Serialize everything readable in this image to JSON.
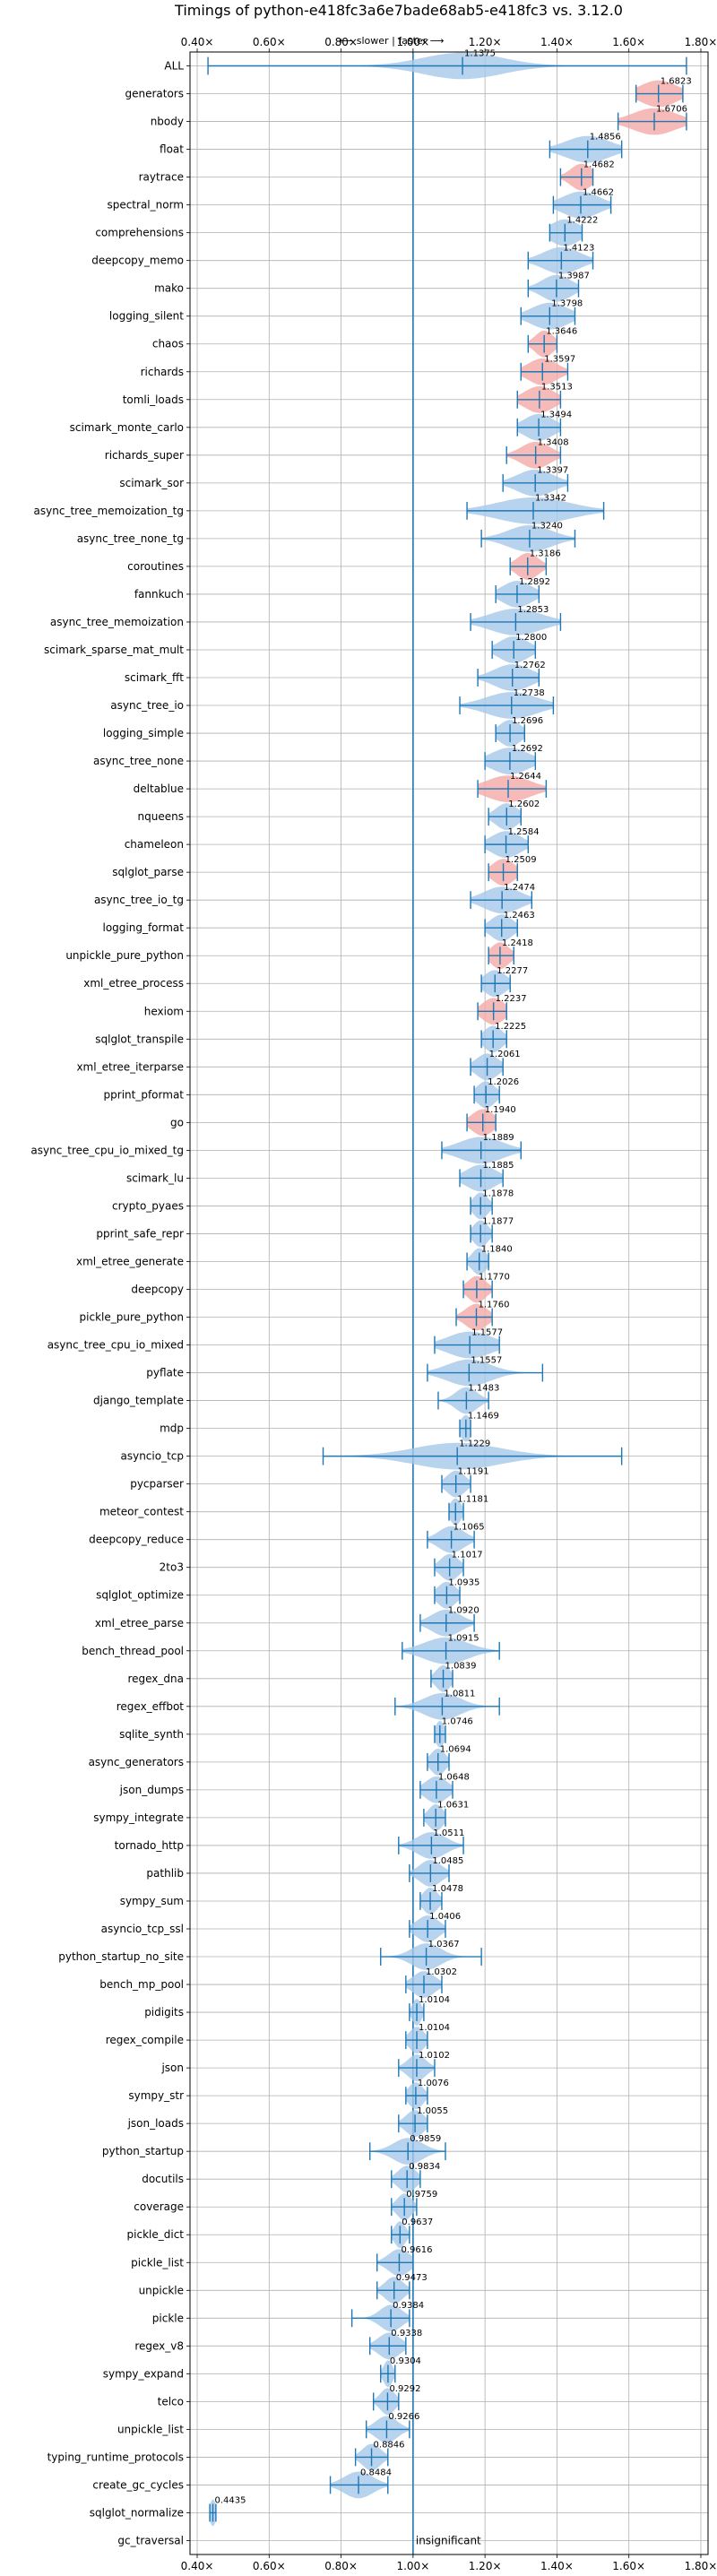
{
  "chart_data": {
    "type": "violin",
    "title": "Timings of python-e418fc3a6e7bade68ab5-e418fc3 vs. 3.12.0",
    "direction_note": "⟵ slower | faster ⟶",
    "xlim": [
      0.38,
      1.82
    ],
    "x_ticks": [
      "0.40×",
      "0.60×",
      "0.80×",
      "1.00×",
      "1.20×",
      "1.40×",
      "1.60×",
      "1.80×"
    ],
    "x_tick_values": [
      0.4,
      0.6,
      0.8,
      1.0,
      1.2,
      1.4,
      1.6,
      1.8
    ],
    "reference_x": 1.0,
    "grid": true,
    "colors": {
      "faster": "#a5c8e8",
      "slower": "#f4a9a8",
      "line": "#1f77b4",
      "grid": "#b0b0b0"
    },
    "benchmarks": [
      {
        "name": "ALL",
        "value": "1.1375",
        "mean": 1.1375,
        "min": 0.43,
        "max": 1.76,
        "spread": 0.11,
        "slower": false
      },
      {
        "name": "generators",
        "value": "1.6823",
        "mean": 1.6823,
        "min": 1.62,
        "max": 1.75,
        "spread": 0.05,
        "slower": true
      },
      {
        "name": "nbody",
        "value": "1.6706",
        "mean": 1.6706,
        "min": 1.57,
        "max": 1.76,
        "spread": 0.06,
        "slower": true
      },
      {
        "name": "float",
        "value": "1.4856",
        "mean": 1.4856,
        "min": 1.38,
        "max": 1.58,
        "spread": 0.06,
        "slower": false
      },
      {
        "name": "raytrace",
        "value": "1.4682",
        "mean": 1.4682,
        "min": 1.41,
        "max": 1.5,
        "spread": 0.03,
        "slower": true
      },
      {
        "name": "spectral_norm",
        "value": "1.4662",
        "mean": 1.4662,
        "min": 1.39,
        "max": 1.55,
        "spread": 0.05,
        "slower": false
      },
      {
        "name": "comprehensions",
        "value": "1.4222",
        "mean": 1.4222,
        "min": 1.38,
        "max": 1.47,
        "spread": 0.04,
        "slower": false
      },
      {
        "name": "deepcopy_memo",
        "value": "1.4123",
        "mean": 1.4123,
        "min": 1.32,
        "max": 1.5,
        "spread": 0.05,
        "slower": false
      },
      {
        "name": "mako",
        "value": "1.3987",
        "mean": 1.3987,
        "min": 1.32,
        "max": 1.46,
        "spread": 0.04,
        "slower": false
      },
      {
        "name": "logging_silent",
        "value": "1.3798",
        "mean": 1.3798,
        "min": 1.3,
        "max": 1.45,
        "spread": 0.05,
        "slower": false
      },
      {
        "name": "chaos",
        "value": "1.3646",
        "mean": 1.3646,
        "min": 1.32,
        "max": 1.4,
        "spread": 0.025,
        "slower": true
      },
      {
        "name": "richards",
        "value": "1.3597",
        "mean": 1.3597,
        "min": 1.3,
        "max": 1.43,
        "spread": 0.04,
        "slower": true
      },
      {
        "name": "tomli_loads",
        "value": "1.3513",
        "mean": 1.3513,
        "min": 1.29,
        "max": 1.41,
        "spread": 0.04,
        "slower": true
      },
      {
        "name": "scimark_monte_carlo",
        "value": "1.3494",
        "mean": 1.3494,
        "min": 1.29,
        "max": 1.41,
        "spread": 0.04,
        "slower": false
      },
      {
        "name": "richards_super",
        "value": "1.3408",
        "mean": 1.3408,
        "min": 1.26,
        "max": 1.41,
        "spread": 0.04,
        "slower": true
      },
      {
        "name": "scimark_sor",
        "value": "1.3397",
        "mean": 1.3397,
        "min": 1.25,
        "max": 1.43,
        "spread": 0.05,
        "slower": false
      },
      {
        "name": "async_tree_memoization_tg",
        "value": "1.3342",
        "mean": 1.3342,
        "min": 1.15,
        "max": 1.53,
        "spread": 0.1,
        "slower": false
      },
      {
        "name": "async_tree_none_tg",
        "value": "1.3240",
        "mean": 1.324,
        "min": 1.19,
        "max": 1.45,
        "spread": 0.06,
        "slower": false
      },
      {
        "name": "coroutines",
        "value": "1.3186",
        "mean": 1.3186,
        "min": 1.27,
        "max": 1.37,
        "spread": 0.03,
        "slower": true
      },
      {
        "name": "fannkuch",
        "value": "1.2892",
        "mean": 1.2892,
        "min": 1.23,
        "max": 1.35,
        "spread": 0.04,
        "slower": false
      },
      {
        "name": "async_tree_memoization",
        "value": "1.2853",
        "mean": 1.2853,
        "min": 1.16,
        "max": 1.41,
        "spread": 0.07,
        "slower": false
      },
      {
        "name": "scimark_sparse_mat_mult",
        "value": "1.2800",
        "mean": 1.28,
        "min": 1.22,
        "max": 1.34,
        "spread": 0.04,
        "slower": false
      },
      {
        "name": "scimark_fft",
        "value": "1.2762",
        "mean": 1.2762,
        "min": 1.18,
        "max": 1.35,
        "spread": 0.05,
        "slower": false
      },
      {
        "name": "async_tree_io",
        "value": "1.2738",
        "mean": 1.2738,
        "min": 1.13,
        "max": 1.39,
        "spread": 0.07,
        "slower": false
      },
      {
        "name": "logging_simple",
        "value": "1.2696",
        "mean": 1.2696,
        "min": 1.23,
        "max": 1.31,
        "spread": 0.03,
        "slower": false
      },
      {
        "name": "async_tree_none",
        "value": "1.2692",
        "mean": 1.2692,
        "min": 1.2,
        "max": 1.34,
        "spread": 0.05,
        "slower": false
      },
      {
        "name": "deltablue",
        "value": "1.2644",
        "mean": 1.2644,
        "min": 1.18,
        "max": 1.37,
        "spread": 0.06,
        "slower": true
      },
      {
        "name": "nqueens",
        "value": "1.2602",
        "mean": 1.2602,
        "min": 1.21,
        "max": 1.3,
        "spread": 0.03,
        "slower": false
      },
      {
        "name": "chameleon",
        "value": "1.2584",
        "mean": 1.2584,
        "min": 1.2,
        "max": 1.32,
        "spread": 0.04,
        "slower": false
      },
      {
        "name": "sqlglot_parse",
        "value": "1.2509",
        "mean": 1.2509,
        "min": 1.21,
        "max": 1.29,
        "spread": 0.03,
        "slower": true
      },
      {
        "name": "async_tree_io_tg",
        "value": "1.2474",
        "mean": 1.2474,
        "min": 1.16,
        "max": 1.33,
        "spread": 0.05,
        "slower": false
      },
      {
        "name": "logging_format",
        "value": "1.2463",
        "mean": 1.2463,
        "min": 1.2,
        "max": 1.29,
        "spread": 0.03,
        "slower": false
      },
      {
        "name": "unpickle_pure_python",
        "value": "1.2418",
        "mean": 1.2418,
        "min": 1.21,
        "max": 1.28,
        "spread": 0.025,
        "slower": true
      },
      {
        "name": "xml_etree_process",
        "value": "1.2277",
        "mean": 1.2277,
        "min": 1.19,
        "max": 1.27,
        "spread": 0.03,
        "slower": false
      },
      {
        "name": "hexiom",
        "value": "1.2237",
        "mean": 1.2237,
        "min": 1.18,
        "max": 1.26,
        "spread": 0.03,
        "slower": true
      },
      {
        "name": "sqlglot_transpile",
        "value": "1.2225",
        "mean": 1.2225,
        "min": 1.19,
        "max": 1.26,
        "spread": 0.025,
        "slower": false
      },
      {
        "name": "xml_etree_iterparse",
        "value": "1.2061",
        "mean": 1.2061,
        "min": 1.16,
        "max": 1.25,
        "spread": 0.03,
        "slower": false
      },
      {
        "name": "pprint_pformat",
        "value": "1.2026",
        "mean": 1.2026,
        "min": 1.17,
        "max": 1.24,
        "spread": 0.025,
        "slower": false
      },
      {
        "name": "go",
        "value": "1.1940",
        "mean": 1.194,
        "min": 1.15,
        "max": 1.23,
        "spread": 0.03,
        "slower": true
      },
      {
        "name": "async_tree_cpu_io_mixed_tg",
        "value": "1.1889",
        "mean": 1.1889,
        "min": 1.08,
        "max": 1.3,
        "spread": 0.06,
        "slower": false
      },
      {
        "name": "scimark_lu",
        "value": "1.1885",
        "mean": 1.1885,
        "min": 1.13,
        "max": 1.25,
        "spread": 0.04,
        "slower": false
      },
      {
        "name": "crypto_pyaes",
        "value": "1.1878",
        "mean": 1.1878,
        "min": 1.16,
        "max": 1.22,
        "spread": 0.02,
        "slower": false
      },
      {
        "name": "pprint_safe_repr",
        "value": "1.1877",
        "mean": 1.1877,
        "min": 1.16,
        "max": 1.22,
        "spread": 0.02,
        "slower": false
      },
      {
        "name": "xml_etree_generate",
        "value": "1.1840",
        "mean": 1.184,
        "min": 1.15,
        "max": 1.21,
        "spread": 0.02,
        "slower": false
      },
      {
        "name": "deepcopy",
        "value": "1.1770",
        "mean": 1.177,
        "min": 1.14,
        "max": 1.22,
        "spread": 0.025,
        "slower": true
      },
      {
        "name": "pickle_pure_python",
        "value": "1.1760",
        "mean": 1.176,
        "min": 1.12,
        "max": 1.22,
        "spread": 0.03,
        "slower": true
      },
      {
        "name": "async_tree_cpu_io_mixed",
        "value": "1.1577",
        "mean": 1.1577,
        "min": 1.06,
        "max": 1.24,
        "spread": 0.06,
        "slower": false
      },
      {
        "name": "pyflate",
        "value": "1.1557",
        "mean": 1.1557,
        "min": 1.04,
        "max": 1.36,
        "spread": 0.06,
        "slower": false
      },
      {
        "name": "django_template",
        "value": "1.1483",
        "mean": 1.1483,
        "min": 1.07,
        "max": 1.21,
        "spread": 0.03,
        "slower": false
      },
      {
        "name": "mdp",
        "value": "1.1469",
        "mean": 1.1469,
        "min": 1.13,
        "max": 1.16,
        "spread": 0.015,
        "slower": false
      },
      {
        "name": "asyncio_tcp",
        "value": "1.1229",
        "mean": 1.1229,
        "min": 0.75,
        "max": 1.58,
        "spread": 0.12,
        "slower": false
      },
      {
        "name": "pycparser",
        "value": "1.1191",
        "mean": 1.1191,
        "min": 1.08,
        "max": 1.16,
        "spread": 0.025,
        "slower": false
      },
      {
        "name": "meteor_contest",
        "value": "1.1181",
        "mean": 1.1181,
        "min": 1.1,
        "max": 1.14,
        "spread": 0.015,
        "slower": false
      },
      {
        "name": "deepcopy_reduce",
        "value": "1.1065",
        "mean": 1.1065,
        "min": 1.04,
        "max": 1.17,
        "spread": 0.035,
        "slower": false
      },
      {
        "name": "2to3",
        "value": "1.1017",
        "mean": 1.1017,
        "min": 1.06,
        "max": 1.14,
        "spread": 0.025,
        "slower": false
      },
      {
        "name": "sqlglot_optimize",
        "value": "1.0935",
        "mean": 1.0935,
        "min": 1.06,
        "max": 1.13,
        "spread": 0.025,
        "slower": false
      },
      {
        "name": "xml_etree_parse",
        "value": "1.0920",
        "mean": 1.092,
        "min": 1.02,
        "max": 1.17,
        "spread": 0.04,
        "slower": false
      },
      {
        "name": "bench_thread_pool",
        "value": "1.0915",
        "mean": 1.0915,
        "min": 0.97,
        "max": 1.24,
        "spread": 0.06,
        "slower": false
      },
      {
        "name": "regex_dna",
        "value": "1.0839",
        "mean": 1.0839,
        "min": 1.05,
        "max": 1.11,
        "spread": 0.02,
        "slower": false
      },
      {
        "name": "regex_effbot",
        "value": "1.0811",
        "mean": 1.0811,
        "min": 0.95,
        "max": 1.24,
        "spread": 0.05,
        "slower": false
      },
      {
        "name": "sqlite_synth",
        "value": "1.0746",
        "mean": 1.0746,
        "min": 1.06,
        "max": 1.09,
        "spread": 0.012,
        "slower": false
      },
      {
        "name": "async_generators",
        "value": "1.0694",
        "mean": 1.0694,
        "min": 1.04,
        "max": 1.1,
        "spread": 0.02,
        "slower": false
      },
      {
        "name": "json_dumps",
        "value": "1.0648",
        "mean": 1.0648,
        "min": 1.02,
        "max": 1.11,
        "spread": 0.03,
        "slower": false
      },
      {
        "name": "sympy_integrate",
        "value": "1.0631",
        "mean": 1.0631,
        "min": 1.03,
        "max": 1.09,
        "spread": 0.02,
        "slower": false
      },
      {
        "name": "tornado_http",
        "value": "1.0511",
        "mean": 1.0511,
        "min": 0.96,
        "max": 1.14,
        "spread": 0.04,
        "slower": false
      },
      {
        "name": "pathlib",
        "value": "1.0485",
        "mean": 1.0485,
        "min": 0.99,
        "max": 1.1,
        "spread": 0.03,
        "slower": false
      },
      {
        "name": "sympy_sum",
        "value": "1.0478",
        "mean": 1.0478,
        "min": 1.02,
        "max": 1.08,
        "spread": 0.02,
        "slower": false
      },
      {
        "name": "asyncio_tcp_ssl",
        "value": "1.0406",
        "mean": 1.0406,
        "min": 0.99,
        "max": 1.09,
        "spread": 0.03,
        "slower": false
      },
      {
        "name": "python_startup_no_site",
        "value": "1.0367",
        "mean": 1.0367,
        "min": 0.91,
        "max": 1.19,
        "spread": 0.04,
        "slower": false
      },
      {
        "name": "bench_mp_pool",
        "value": "1.0302",
        "mean": 1.0302,
        "min": 0.98,
        "max": 1.08,
        "spread": 0.03,
        "slower": false
      },
      {
        "name": "pidigits",
        "value": "1.0104",
        "mean": 1.0104,
        "min": 0.99,
        "max": 1.03,
        "spread": 0.012,
        "slower": false
      },
      {
        "name": "regex_compile",
        "value": "1.0104",
        "mean": 1.0104,
        "min": 0.98,
        "max": 1.04,
        "spread": 0.02,
        "slower": false
      },
      {
        "name": "json",
        "value": "1.0102",
        "mean": 1.0102,
        "min": 0.96,
        "max": 1.06,
        "spread": 0.025,
        "slower": false
      },
      {
        "name": "sympy_str",
        "value": "1.0076",
        "mean": 1.0076,
        "min": 0.98,
        "max": 1.04,
        "spread": 0.02,
        "slower": false
      },
      {
        "name": "json_loads",
        "value": "1.0055",
        "mean": 1.0055,
        "min": 0.96,
        "max": 1.04,
        "spread": 0.025,
        "slower": false
      },
      {
        "name": "python_startup",
        "value": "0.9859",
        "mean": 0.9859,
        "min": 0.88,
        "max": 1.09,
        "spread": 0.04,
        "slower": false
      },
      {
        "name": "docutils",
        "value": "0.9834",
        "mean": 0.9834,
        "min": 0.94,
        "max": 1.02,
        "spread": 0.025,
        "slower": false
      },
      {
        "name": "coverage",
        "value": "0.9759",
        "mean": 0.9759,
        "min": 0.94,
        "max": 1.01,
        "spread": 0.02,
        "slower": false
      },
      {
        "name": "pickle_dict",
        "value": "0.9637",
        "mean": 0.9637,
        "min": 0.94,
        "max": 0.99,
        "spread": 0.015,
        "slower": false
      },
      {
        "name": "pickle_list",
        "value": "0.9616",
        "mean": 0.9616,
        "min": 0.9,
        "max": 1.0,
        "spread": 0.03,
        "slower": false
      },
      {
        "name": "unpickle",
        "value": "0.9473",
        "mean": 0.9473,
        "min": 0.9,
        "max": 0.99,
        "spread": 0.025,
        "slower": false
      },
      {
        "name": "pickle",
        "value": "0.9384",
        "mean": 0.9384,
        "min": 0.83,
        "max": 0.99,
        "spread": 0.03,
        "slower": false
      },
      {
        "name": "regex_v8",
        "value": "0.9338",
        "mean": 0.9338,
        "min": 0.88,
        "max": 0.98,
        "spread": 0.03,
        "slower": false
      },
      {
        "name": "sympy_expand",
        "value": "0.9304",
        "mean": 0.9304,
        "min": 0.91,
        "max": 0.95,
        "spread": 0.012,
        "slower": false
      },
      {
        "name": "telco",
        "value": "0.9292",
        "mean": 0.9292,
        "min": 0.89,
        "max": 0.96,
        "spread": 0.02,
        "slower": false
      },
      {
        "name": "unpickle_list",
        "value": "0.9266",
        "mean": 0.9266,
        "min": 0.87,
        "max": 0.99,
        "spread": 0.03,
        "slower": false
      },
      {
        "name": "typing_runtime_protocols",
        "value": "0.8846",
        "mean": 0.8846,
        "min": 0.84,
        "max": 0.93,
        "spread": 0.025,
        "slower": false
      },
      {
        "name": "create_gc_cycles",
        "value": "0.8484",
        "mean": 0.8484,
        "min": 0.77,
        "max": 0.93,
        "spread": 0.04,
        "slower": false
      },
      {
        "name": "sqlglot_normalize",
        "value": "0.4435",
        "mean": 0.4435,
        "min": 0.435,
        "max": 0.452,
        "spread": 0.008,
        "slower": false
      },
      {
        "name": "gc_traversal",
        "value": "insignificant",
        "mean": null,
        "min": null,
        "max": null,
        "spread": null,
        "slower": false
      }
    ]
  }
}
